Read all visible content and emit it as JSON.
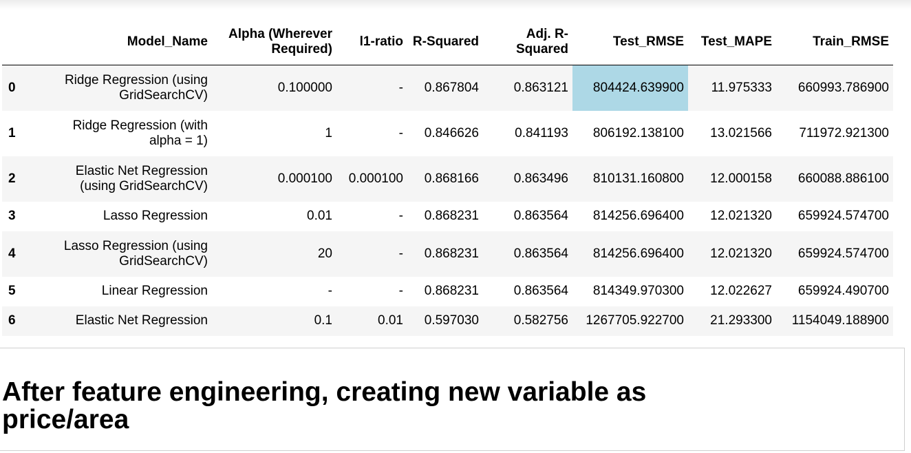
{
  "table": {
    "columns": [
      "",
      "Model_Name",
      "Alpha (Wherever Required)",
      "l1-ratio",
      "R-Squared",
      "Adj. R-Squared",
      "Test_RMSE",
      "Test_MAPE",
      "Train_RMSE"
    ],
    "rows": [
      {
        "index": "0",
        "model_name": "Ridge Regression (using GridSearchCV)",
        "alpha": "0.100000",
        "l1_ratio": "-",
        "r_squared": "0.867804",
        "adj_r_squared": "0.863121",
        "test_rmse": "804424.639900",
        "test_mape": "11.975333",
        "train_rmse": "660993.786900"
      },
      {
        "index": "1",
        "model_name": "Ridge Regression (with alpha = 1)",
        "alpha": "1",
        "l1_ratio": "-",
        "r_squared": "0.846626",
        "adj_r_squared": "0.841193",
        "test_rmse": "806192.138100",
        "test_mape": "13.021566",
        "train_rmse": "711972.921300"
      },
      {
        "index": "2",
        "model_name": "Elastic Net Regression (using GridSearchCV)",
        "alpha": "0.000100",
        "l1_ratio": "0.000100",
        "r_squared": "0.868166",
        "adj_r_squared": "0.863496",
        "test_rmse": "810131.160800",
        "test_mape": "12.000158",
        "train_rmse": "660088.886100"
      },
      {
        "index": "3",
        "model_name": "Lasso Regression",
        "alpha": "0.01",
        "l1_ratio": "-",
        "r_squared": "0.868231",
        "adj_r_squared": "0.863564",
        "test_rmse": "814256.696400",
        "test_mape": "12.021320",
        "train_rmse": "659924.574700"
      },
      {
        "index": "4",
        "model_name": "Lasso Regression (using GridSearchCV)",
        "alpha": "20",
        "l1_ratio": "-",
        "r_squared": "0.868231",
        "adj_r_squared": "0.863564",
        "test_rmse": "814256.696400",
        "test_mape": "12.021320",
        "train_rmse": "659924.574700"
      },
      {
        "index": "5",
        "model_name": "Linear Regression",
        "alpha": "-",
        "l1_ratio": "-",
        "r_squared": "0.868231",
        "adj_r_squared": "0.863564",
        "test_rmse": "814349.970300",
        "test_mape": "12.022627",
        "train_rmse": "659924.490700"
      },
      {
        "index": "6",
        "model_name": "Elastic Net Regression",
        "alpha": "0.1",
        "l1_ratio": "0.01",
        "r_squared": "0.597030",
        "adj_r_squared": "0.582756",
        "test_rmse": "1267705.922700",
        "test_mape": "21.293300",
        "train_rmse": "1154049.188900"
      }
    ],
    "highlight_color": "#add8e6"
  },
  "markdown": {
    "heading": "After feature engineering, creating new variable as price/area"
  }
}
